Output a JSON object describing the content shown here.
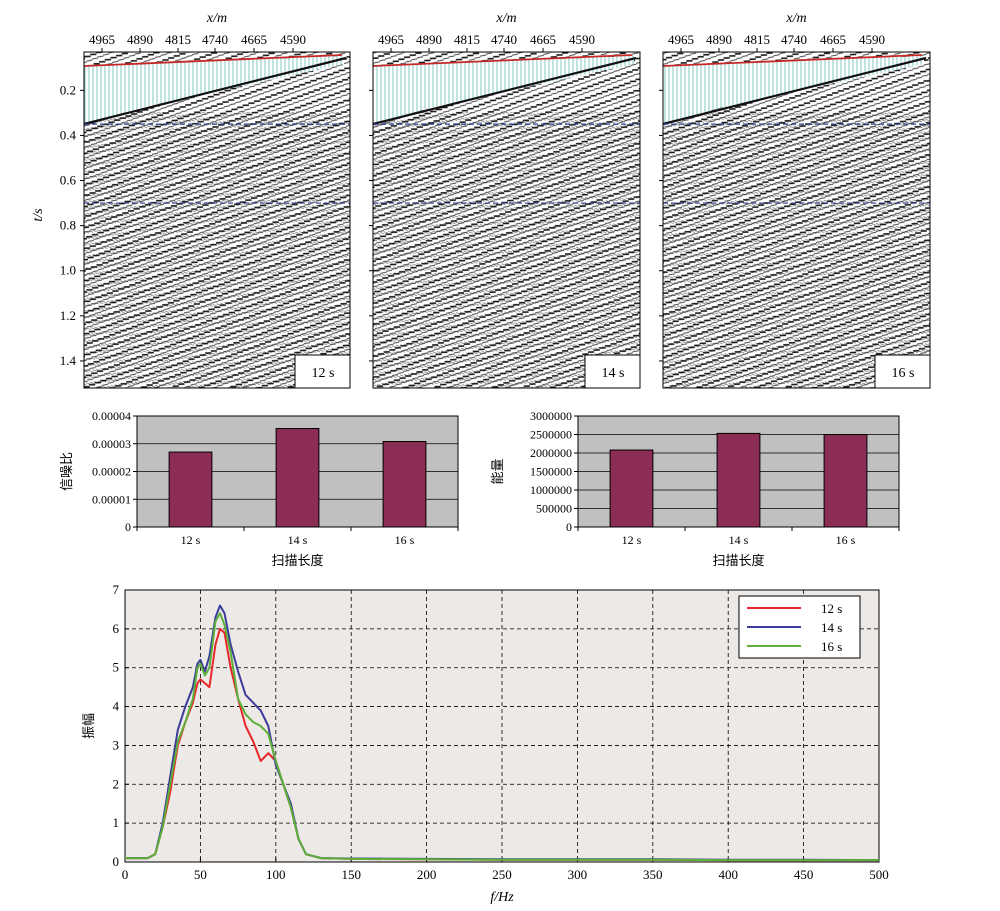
{
  "seismic_panels": {
    "x_axis_label": "x/m",
    "x_ticks": [
      "4965",
      "4890",
      "4815",
      "4740",
      "4665",
      "4590"
    ],
    "y_axis_label": "t/s",
    "y_ticks": [
      "0.2",
      "0.4",
      "0.6",
      "0.8",
      "1.0",
      "1.2",
      "1.4"
    ],
    "y_range": [
      0.03,
      1.52
    ],
    "panel_labels": [
      "12 s",
      "14 s",
      "16 s"
    ]
  },
  "chart_data": [
    {
      "type": "bar",
      "ylabel": "信噪比",
      "xlabel": "扫描长度",
      "categories": [
        "12 s",
        "14 s",
        "16 s"
      ],
      "values": [
        2.7e-05,
        3.55e-05,
        3.08e-05
      ],
      "ylim": [
        0,
        4e-05
      ],
      "yticks": [
        "0",
        "0.00001",
        "0.00002",
        "0.00003",
        "0.00004"
      ],
      "grid": true,
      "color": "#8b2d55"
    },
    {
      "type": "bar",
      "ylabel": "能量",
      "xlabel": "扫描长度",
      "categories": [
        "12 s",
        "14 s",
        "16 s"
      ],
      "values": [
        2080000,
        2530000,
        2500000
      ],
      "ylim": [
        0,
        3000000
      ],
      "yticks": [
        "0",
        "500000",
        "1000000",
        "1500000",
        "2000000",
        "2500000",
        "3000000"
      ],
      "grid": true,
      "color": "#8b2d55"
    },
    {
      "type": "line",
      "ylabel": "振幅",
      "xlabel": "f/Hz",
      "xlim": [
        0,
        500
      ],
      "ylim": [
        0,
        7
      ],
      "xticks": [
        "0",
        "50",
        "100",
        "150",
        "200",
        "250",
        "300",
        "350",
        "400",
        "450",
        "500"
      ],
      "yticks": [
        "0",
        "1",
        "2",
        "3",
        "4",
        "5",
        "6",
        "7"
      ],
      "grid": "dashed",
      "legend_position": "top-right",
      "series": [
        {
          "name": "12 s",
          "color": "#e8262b",
          "x": [
            0,
            15,
            20,
            25,
            30,
            35,
            40,
            45,
            48,
            50,
            53,
            56,
            60,
            63,
            66,
            70,
            75,
            80,
            85,
            90,
            95,
            100,
            105,
            110,
            115,
            120,
            130,
            150,
            200,
            250,
            300,
            350,
            400,
            450,
            500
          ],
          "y": [
            0.1,
            0.1,
            0.2,
            0.9,
            1.8,
            3.0,
            3.6,
            4.1,
            4.6,
            4.7,
            4.6,
            4.5,
            5.6,
            6.0,
            5.9,
            5.0,
            4.2,
            3.5,
            3.1,
            2.6,
            2.8,
            2.6,
            2.0,
            1.4,
            0.6,
            0.2,
            0.1,
            0.08,
            0.07,
            0.06,
            0.06,
            0.06,
            0.05,
            0.05,
            0.05
          ]
        },
        {
          "name": "14 s",
          "color": "#3c3c9a",
          "x": [
            0,
            15,
            20,
            25,
            30,
            35,
            40,
            45,
            48,
            50,
            53,
            56,
            60,
            63,
            66,
            70,
            75,
            80,
            85,
            90,
            95,
            100,
            105,
            110,
            115,
            120,
            130,
            150,
            200,
            250,
            300,
            350,
            400,
            450,
            500
          ],
          "y": [
            0.1,
            0.1,
            0.2,
            1.0,
            2.2,
            3.4,
            4.0,
            4.5,
            5.1,
            5.2,
            4.9,
            5.3,
            6.3,
            6.6,
            6.4,
            5.6,
            4.9,
            4.3,
            4.1,
            3.9,
            3.5,
            2.5,
            2.0,
            1.5,
            0.6,
            0.2,
            0.1,
            0.09,
            0.08,
            0.07,
            0.07,
            0.07,
            0.06,
            0.06,
            0.05
          ]
        },
        {
          "name": "16 s",
          "color": "#5cb039",
          "x": [
            0,
            15,
            20,
            25,
            30,
            35,
            40,
            45,
            48,
            50,
            53,
            56,
            60,
            63,
            66,
            70,
            75,
            80,
            85,
            90,
            95,
            100,
            105,
            110,
            115,
            120,
            130,
            150,
            200,
            250,
            300,
            350,
            400,
            450,
            500
          ],
          "y": [
            0.1,
            0.1,
            0.2,
            0.9,
            2.0,
            3.1,
            3.6,
            4.2,
            5.0,
            5.1,
            4.8,
            5.0,
            6.2,
            6.4,
            6.1,
            5.4,
            4.2,
            3.8,
            3.6,
            3.5,
            3.3,
            2.6,
            2.0,
            1.4,
            0.6,
            0.2,
            0.1,
            0.08,
            0.07,
            0.06,
            0.06,
            0.06,
            0.05,
            0.05,
            0.05
          ]
        }
      ]
    }
  ]
}
